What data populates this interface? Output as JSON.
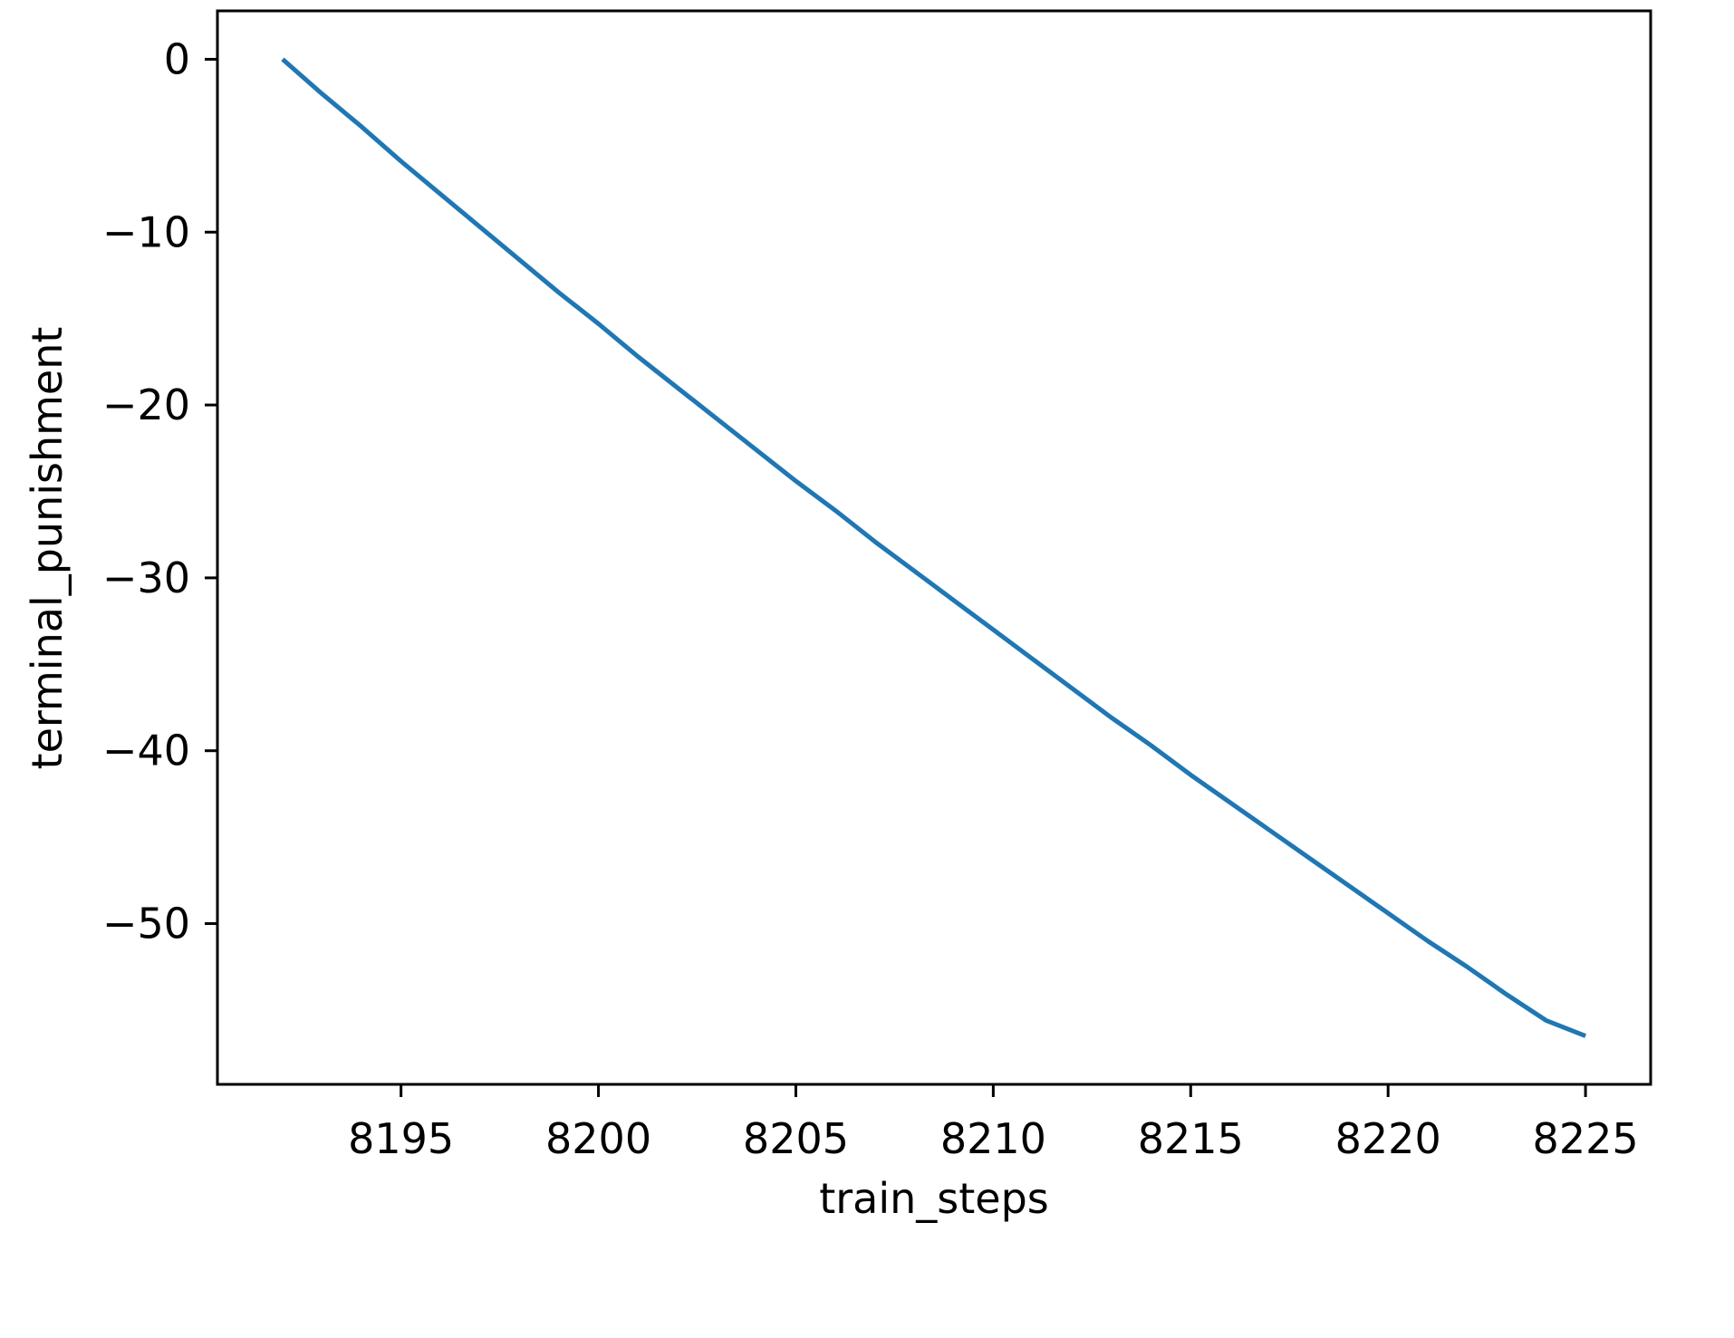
{
  "chart_data": {
    "type": "line",
    "xlabel": "train_steps",
    "ylabel": "terminal_punishment",
    "xlim": [
      8190.35,
      8226.65
    ],
    "ylim": [
      -59.3,
      2.8
    ],
    "xticks": [
      8195,
      8200,
      8205,
      8210,
      8215,
      8220,
      8225
    ],
    "yticks": [
      0,
      -10,
      -20,
      -30,
      -40,
      -50
    ],
    "grid": false,
    "series": [
      {
        "color": "#1f77b4",
        "x": [
          8192,
          8193,
          8194,
          8195,
          8196,
          8197,
          8198,
          8199,
          8200,
          8201,
          8202,
          8203,
          8204,
          8205,
          8206,
          8207,
          8208,
          8209,
          8210,
          8211,
          8212,
          8213,
          8214,
          8215,
          8216,
          8217,
          8218,
          8219,
          8220,
          8221,
          8222,
          8223,
          8224,
          8225
        ],
        "y": [
          0.0,
          -2.0,
          -3.9,
          -5.9,
          -7.8,
          -9.7,
          -11.6,
          -13.5,
          -15.3,
          -17.2,
          -19.0,
          -20.8,
          -22.6,
          -24.4,
          -26.1,
          -27.9,
          -29.6,
          -31.3,
          -33.0,
          -34.7,
          -36.4,
          -38.1,
          -39.7,
          -41.4,
          -43.0,
          -44.6,
          -46.2,
          -47.8,
          -49.4,
          -51.0,
          -52.5,
          -54.1,
          -55.6,
          -56.5
        ]
      }
    ]
  }
}
